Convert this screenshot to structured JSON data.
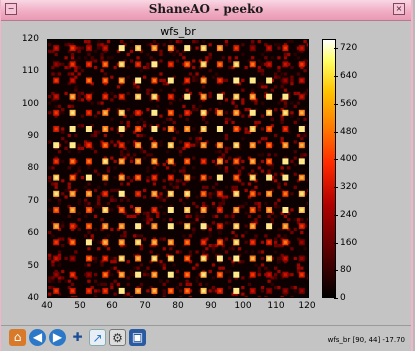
{
  "window": {
    "title": "ShaneAO - peeko",
    "menu_glyph": "−",
    "close_glyph": "×"
  },
  "plot": {
    "title": "wfs_br",
    "yticks": [
      "120",
      "110",
      "100",
      "90",
      "80",
      "70",
      "60",
      "50",
      "40"
    ],
    "xticks": [
      "40",
      "50",
      "60",
      "70",
      "80",
      "90",
      "100",
      "110",
      "120"
    ],
    "grid": {
      "rows": 16,
      "cols": 16
    }
  },
  "colorbar": {
    "ticks": [
      "720",
      "640",
      "560",
      "480",
      "400",
      "320",
      "240",
      "160",
      "80",
      "0"
    ],
    "max": 720
  },
  "toolbar": {
    "buttons": [
      {
        "name": "home-icon",
        "glyph": "⌂"
      },
      {
        "name": "back-icon",
        "glyph": "◀"
      },
      {
        "name": "forward-icon",
        "glyph": "▶"
      },
      {
        "name": "pan-icon",
        "glyph": "✚"
      },
      {
        "name": "zoom-icon",
        "glyph": "↗"
      },
      {
        "name": "configure-icon",
        "glyph": "⚙"
      },
      {
        "name": "save-icon",
        "glyph": "▣"
      }
    ]
  },
  "status": {
    "text": "wfs_br [90, 44] -17.70"
  },
  "colors": {
    "titlebar": "#f0aec5",
    "plot_bg": "#0d0000"
  }
}
